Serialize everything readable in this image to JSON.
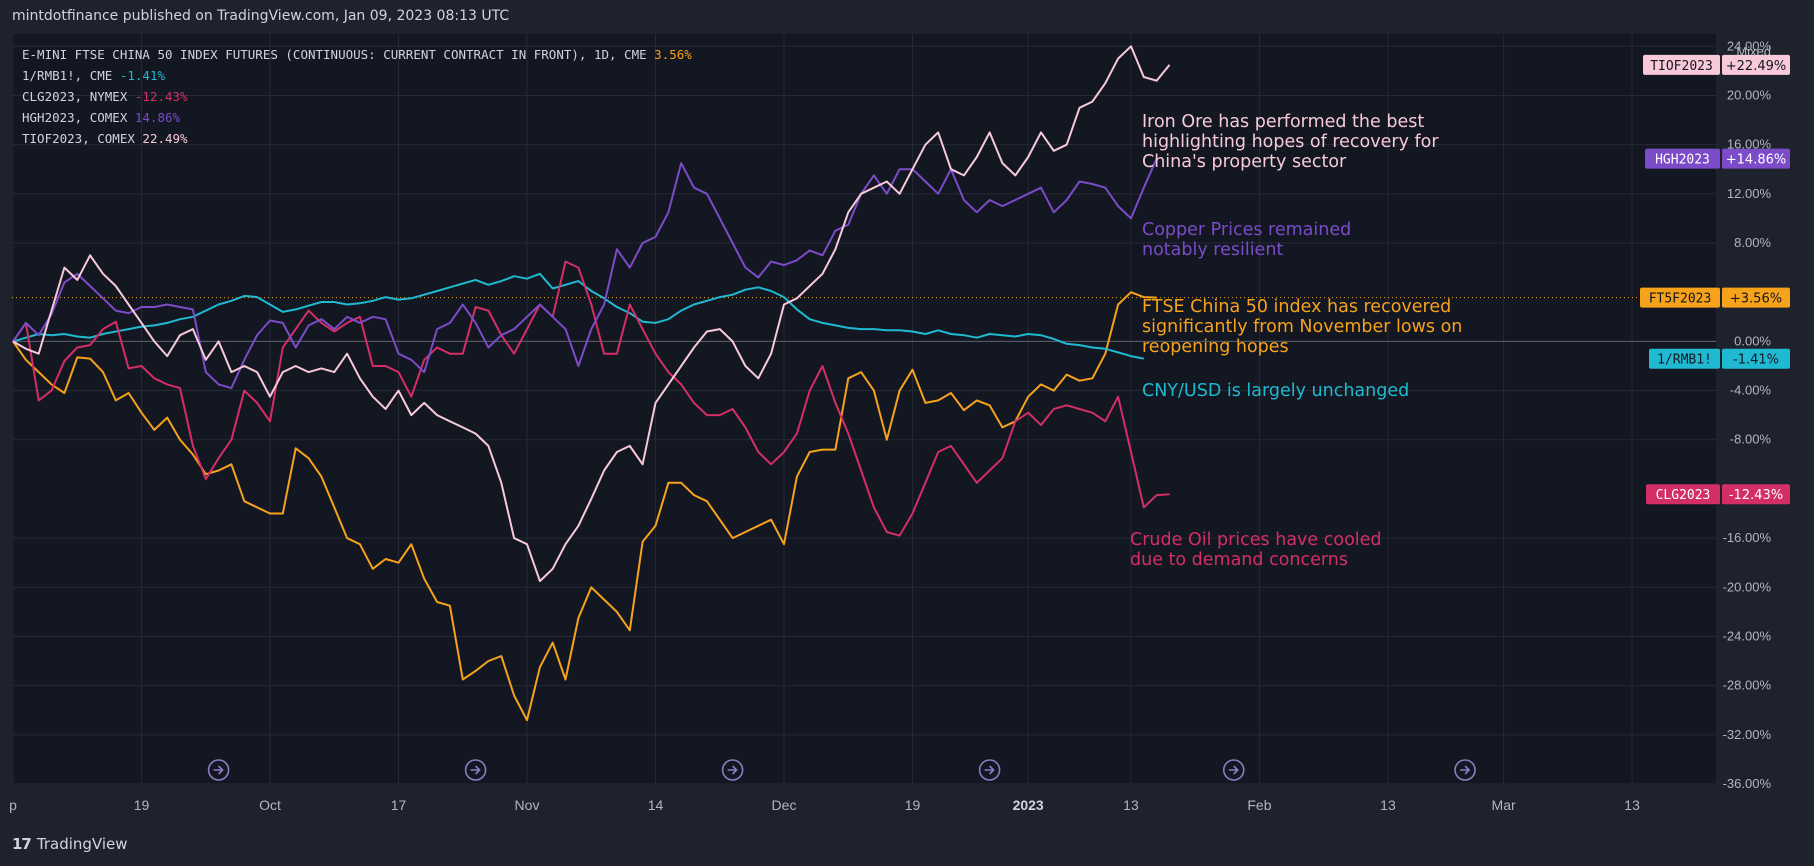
{
  "header": {
    "published": "mintdotfinance published on TradingView.com, Jan 09, 2023 08:13 UTC"
  },
  "footer": {
    "logo": "𝟭𝟳",
    "brand": "TradingView"
  },
  "scale_mode": "Mixed",
  "colors": {
    "background": "#131722",
    "outer": "#1e222d",
    "grid": "#242935",
    "text": "#b2b5be",
    "ftse": "#f7a21b",
    "cny": "#1fbad1",
    "crude": "#d42e67",
    "copper": "#7b4bc8",
    "iron": "#f8c9d9"
  },
  "chart_data": {
    "type": "line",
    "title": "E-MINI FTSE CHINA 50 INDEX FUTURES (CONTINUOUS: CURRENT CONTRACT IN FRONT), 1D, CME",
    "ylabel": "%",
    "ylim": [
      -36,
      25
    ],
    "x_ticks": [
      {
        "label": "p",
        "i": 0
      },
      {
        "label": "19",
        "i": 10
      },
      {
        "label": "Oct",
        "i": 20
      },
      {
        "label": "17",
        "i": 30
      },
      {
        "label": "Nov",
        "i": 40
      },
      {
        "label": "14",
        "i": 50
      },
      {
        "label": "Dec",
        "i": 60
      },
      {
        "label": "19",
        "i": 70
      },
      {
        "label": "2023",
        "i": 79
      },
      {
        "label": "13",
        "i": 87
      },
      {
        "label": "Feb",
        "i": 97
      },
      {
        "label": "13",
        "i": 107
      },
      {
        "label": "Mar",
        "i": 116
      },
      {
        "label": "13",
        "i": 126
      }
    ],
    "y_ticks": [
      {
        "label": "24.00%",
        "v": 24
      },
      {
        "label": "20.00%",
        "v": 20
      },
      {
        "label": "16.00%",
        "v": 16
      },
      {
        "label": "12.00%",
        "v": 12
      },
      {
        "label": "8.00%",
        "v": 8
      },
      {
        "label": "0.00%",
        "v": 0
      },
      {
        "label": "-4.00%",
        "v": -4
      },
      {
        "label": "-8.00%",
        "v": -8
      },
      {
        "label": "-16.00%",
        "v": -16
      },
      {
        "label": "-20.00%",
        "v": -20
      },
      {
        "label": "-24.00%",
        "v": -24
      },
      {
        "label": "-28.00%",
        "v": -28
      },
      {
        "label": "-32.00%",
        "v": -32
      },
      {
        "label": "-36.00%",
        "v": -36
      }
    ],
    "event_markers_at": [
      16,
      36,
      56,
      76,
      95,
      113
    ],
    "series": [
      {
        "name": "FT5F2023",
        "legend": "E-MINI FTSE CHINA 50 INDEX FUTURES (CONTINUOUS: CURRENT CONTRACT IN FRONT), 1D, CME",
        "legend_value": "3.56%",
        "tag_value": "+3.56%",
        "color_key": "ftse",
        "values": [
          0,
          -1.5,
          -2.5,
          -3.5,
          -4.2,
          -1.3,
          -1.4,
          -2.5,
          -4.8,
          -4.2,
          -5.8,
          -7.2,
          -6.2,
          -8,
          -9.2,
          -10.8,
          -10.5,
          -10,
          -13,
          -13.5,
          -14,
          -14,
          -8.7,
          -9.5,
          -11,
          -13.5,
          -16,
          -16.5,
          -18.5,
          -17.7,
          -18,
          -16.5,
          -19.3,
          -21.2,
          -21.5,
          -27.5,
          -26.8,
          -26,
          -25.6,
          -28.8,
          -30.8,
          -26.5,
          -24.5,
          -27.5,
          -22.5,
          -20,
          -21,
          -22,
          -23.5,
          -16.3,
          -15,
          -11.5,
          -11.5,
          -12.5,
          -13,
          -14.5,
          -16,
          -15.5,
          -15,
          -14.5,
          -16.5,
          -11,
          -9,
          -8.8,
          -8.8,
          -3,
          -2.5,
          -4,
          -8,
          -4,
          -2.3,
          -5,
          -4.8,
          -4.2,
          -5.6,
          -4.8,
          -5.2,
          -7,
          -6.5,
          -4.5,
          -3.5,
          -4,
          -2.7,
          -3.2,
          -3,
          -1,
          3,
          4,
          3.6,
          3.56
        ]
      },
      {
        "name": "1/RMB1!",
        "legend": "1/RMB1!, CME",
        "legend_value": "-1.41%",
        "tag_value": "-1.41%",
        "color_key": "cny",
        "values": [
          0,
          0.3,
          0.6,
          0.5,
          0.6,
          0.4,
          0.3,
          0.6,
          0.8,
          1,
          1.2,
          1.3,
          1.5,
          1.8,
          2,
          2.5,
          3,
          3.3,
          3.7,
          3.6,
          3,
          2.4,
          2.6,
          2.9,
          3.2,
          3.2,
          3,
          3.1,
          3.3,
          3.6,
          3.4,
          3.5,
          3.8,
          4.1,
          4.4,
          4.7,
          5,
          4.6,
          4.9,
          5.3,
          5.1,
          5.5,
          4.3,
          4.6,
          4.9,
          4.1,
          3.5,
          2.8,
          2.3,
          1.6,
          1.5,
          1.8,
          2.5,
          3,
          3.3,
          3.6,
          3.8,
          4.2,
          4.4,
          4.1,
          3.6,
          2.6,
          1.8,
          1.5,
          1.3,
          1.1,
          1,
          1,
          0.9,
          0.9,
          0.8,
          0.6,
          0.9,
          0.6,
          0.5,
          0.3,
          0.6,
          0.5,
          0.4,
          0.6,
          0.5,
          0.2,
          -0.2,
          -0.3,
          -0.5,
          -0.6,
          -0.9,
          -1.2,
          -1.41
        ]
      },
      {
        "name": "CLG2023",
        "legend": "CLG2023, NYMEX",
        "legend_value": "-12.43%",
        "tag_value": "-12.43%",
        "color_key": "crude",
        "values": [
          0,
          1.5,
          -4.8,
          -4,
          -1.6,
          -0.5,
          -0.3,
          1,
          1.6,
          -2.2,
          -2,
          -3,
          -3.5,
          -3.8,
          -8.5,
          -11.2,
          -9.5,
          -8,
          -4,
          -5,
          -6.5,
          -0.5,
          1,
          2.5,
          1.5,
          0.8,
          1.5,
          2,
          -2,
          -2,
          -2.5,
          -4.5,
          -1.5,
          -0.5,
          -1,
          -1,
          2.8,
          2.5,
          0.5,
          -1,
          1,
          3,
          2,
          6.5,
          6,
          3,
          -1,
          -1,
          3,
          1,
          -1,
          -2.5,
          -3.5,
          -5,
          -6,
          -6,
          -5.5,
          -7,
          -9,
          -10,
          -9,
          -7.5,
          -4,
          -2,
          -5,
          -7.5,
          -10.5,
          -13.5,
          -15.5,
          -15.8,
          -14,
          -11.5,
          -9,
          -8.5,
          -10,
          -11.5,
          -10.5,
          -9.5,
          -6.5,
          -5.8,
          -6.8,
          -5.5,
          -5.2,
          -5.5,
          -5.8,
          -6.5,
          -4.5,
          -9,
          -13.5,
          -12.5,
          -12.43
        ]
      },
      {
        "name": "HGH2023",
        "legend": "HGH2023, COMEX",
        "legend_value": "14.86%",
        "tag_value": "+14.86%",
        "color_key": "copper",
        "values": [
          0,
          1.5,
          0.5,
          2.2,
          4.8,
          5.5,
          4.5,
          3.5,
          2.5,
          2.3,
          2.8,
          2.8,
          3,
          2.8,
          2.6,
          -2.5,
          -3.5,
          -3.8,
          -1.5,
          0.5,
          1.7,
          1.5,
          -0.5,
          1.3,
          1.8,
          1,
          2,
          1.5,
          2,
          1.8,
          -1,
          -1.5,
          -2.5,
          1,
          1.5,
          3,
          1.5,
          -0.5,
          0.5,
          1,
          2,
          3,
          2,
          1,
          -2,
          1,
          3,
          7.5,
          6,
          8,
          8.5,
          10.5,
          14.5,
          12.5,
          12,
          10,
          8,
          6,
          5.2,
          6.5,
          6.2,
          6.6,
          7.4,
          7,
          9,
          9.5,
          12,
          13.5,
          12,
          14,
          14,
          13,
          12,
          14,
          11.5,
          10.5,
          11.5,
          11,
          11.5,
          12,
          12.5,
          10.5,
          11.5,
          13,
          12.8,
          12.5,
          11,
          10,
          12.5,
          14.86
        ]
      },
      {
        "name": "TIOF2023",
        "legend": "TIOF2023, COMEX",
        "legend_value": "22.49%",
        "tag_value": "+22.49%",
        "color_key": "iron",
        "values": [
          0,
          -0.6,
          -1,
          2.5,
          6,
          5,
          7,
          5.5,
          4.5,
          3,
          1.5,
          0,
          -1.2,
          0.5,
          1,
          -1.5,
          0,
          -2.5,
          -2,
          -2.5,
          -4.5,
          -2.5,
          -2,
          -2.5,
          -2.2,
          -2.5,
          -1,
          -3,
          -4.5,
          -5.5,
          -4,
          -6,
          -5,
          -6,
          -6.5,
          -7,
          -7.5,
          -8.5,
          -11.5,
          -16,
          -16.5,
          -19.5,
          -18.5,
          -16.5,
          -15,
          -12.8,
          -10.5,
          -9,
          -8.5,
          -10,
          -5,
          -3.5,
          -2,
          -0.5,
          0.8,
          1,
          0,
          -2,
          -3,
          -1,
          3,
          3.5,
          4.5,
          5.5,
          7.5,
          10.5,
          12,
          12.5,
          13,
          12,
          14,
          16,
          17,
          14,
          13.5,
          15,
          17,
          14.5,
          13.5,
          15,
          17,
          15.5,
          16,
          19,
          19.5,
          21,
          23,
          24,
          21.5,
          21.2,
          22.49
        ]
      }
    ]
  },
  "annotations": [
    {
      "lines": [
        "Iron Ore has performed the best",
        "highlighting hopes of recovery for",
        "China's property sector"
      ],
      "color_key": "iron"
    },
    {
      "lines": [
        "Copper Prices remained",
        "notably resilient"
      ],
      "color_key": "copper"
    },
    {
      "lines": [
        "FTSE China 50 index has recovered",
        "significantly from November lows on",
        "reopening hopes"
      ],
      "color_key": "ftse"
    },
    {
      "lines": [
        "CNY/USD is largely unchanged"
      ],
      "color_key": "cny"
    },
    {
      "lines": [
        "Crude Oil prices have cooled",
        "due to demand concerns"
      ],
      "color_key": "crude"
    }
  ]
}
